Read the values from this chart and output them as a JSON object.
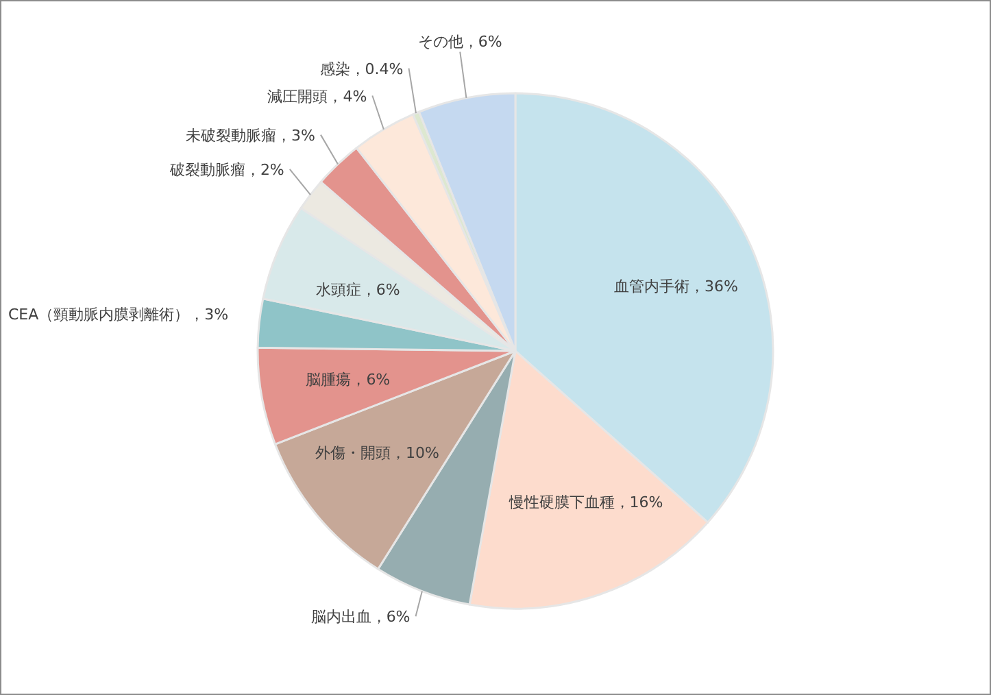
{
  "chart_data": {
    "type": "pie",
    "categories": [
      "血管内手術",
      "慢性硬膜下血種",
      "脳内出血",
      "外傷・開頭",
      "脳腫瘍",
      "CEA（頸動脈内膜剥離術）",
      "水頭症",
      "破裂動脈瘤",
      "未破裂動脈瘤",
      "減圧開頭",
      "感染",
      "その他"
    ],
    "values": [
      36,
      16,
      6,
      10,
      6,
      3,
      6,
      2,
      3,
      4,
      0.4,
      6
    ],
    "value_labels": [
      "36%",
      "16%",
      "6%",
      "10%",
      "6%",
      "3%",
      "6%",
      "2%",
      "3%",
      "4%",
      "0.4%",
      "6%"
    ],
    "colors": [
      "#c5e3ed",
      "#fddccd",
      "#96adb0",
      "#c6a898",
      "#e3938d",
      "#8fc4c8",
      "#d8e9ea",
      "#ece9e1",
      "#e3938d",
      "#fde8da",
      "#dde8d0",
      "#c5d9f0"
    ]
  }
}
